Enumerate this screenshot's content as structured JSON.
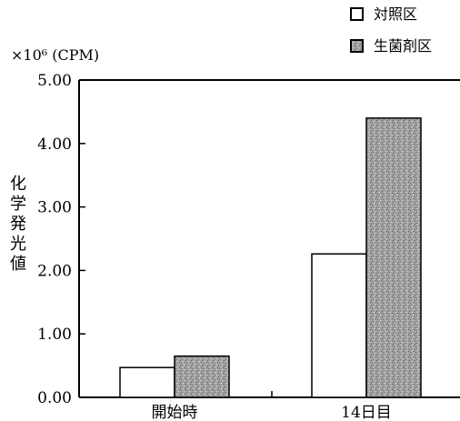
{
  "chart_data": {
    "type": "bar",
    "categories": [
      "開始時",
      "14日目"
    ],
    "series": [
      {
        "name": "対照区",
        "values": [
          0.47,
          2.26
        ],
        "fill": "#ffffff"
      },
      {
        "name": "生菌剤区",
        "values": [
          0.65,
          4.4
        ],
        "fill": "#9a9a9a"
      }
    ],
    "ylabel_chars": [
      "化",
      "学",
      "発",
      "光",
      "値"
    ],
    "y_unit": "×10⁶ (CPM)",
    "ylim": [
      0,
      5
    ],
    "yticks": [
      "0.00",
      "1.00",
      "2.00",
      "3.00",
      "4.00",
      "5.00"
    ],
    "legend_position": "top-right",
    "grid": false
  }
}
